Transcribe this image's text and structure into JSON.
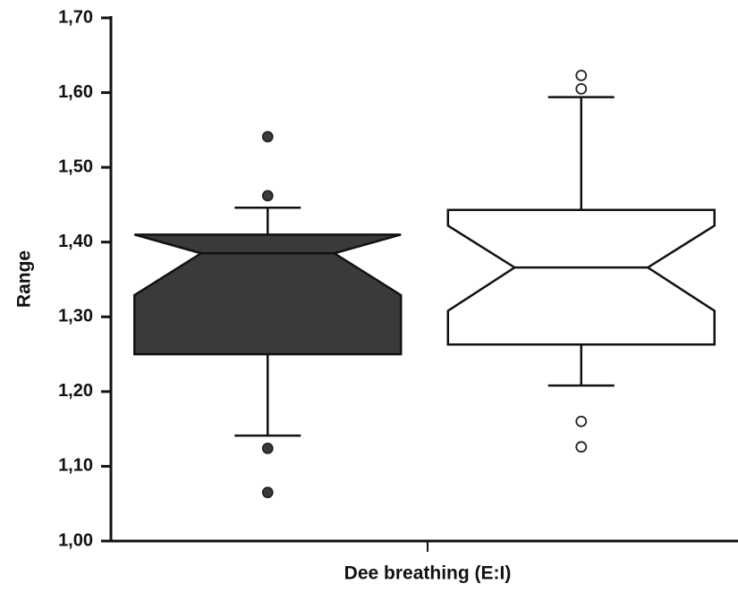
{
  "chart_data": {
    "type": "box",
    "x_label": "Dee breathing (E:I)",
    "y_label": "Range",
    "categories": [
      null,
      null
    ],
    "boxes": [
      {
        "color": "#3a3a3a",
        "q1": 1.25,
        "median": 1.385,
        "q3": 1.41,
        "notch_low": 1.329,
        "notch_high": 1.41,
        "whisker_low": 1.141,
        "whisker_high": 1.446,
        "outliers": [
          1.541,
          1.462,
          1.124,
          1.065
        ]
      },
      {
        "color": "#ffffff",
        "q1": 1.263,
        "median": 1.366,
        "q3": 1.443,
        "notch_low": 1.308,
        "notch_high": 1.422,
        "whisker_low": 1.208,
        "whisker_high": 1.594,
        "outliers": [
          1.623,
          1.605,
          1.16,
          1.126
        ]
      }
    ],
    "ylim": [
      1.0,
      1.7
    ],
    "yticks": [
      {
        "value": 1.0,
        "label": "1,00"
      },
      {
        "value": 1.1,
        "label": "1,10"
      },
      {
        "value": 1.2,
        "label": "1,20"
      },
      {
        "value": 1.3,
        "label": "1,30"
      },
      {
        "value": 1.4,
        "label": "1,40"
      },
      {
        "value": 1.5,
        "label": "1,50"
      },
      {
        "value": 1.6,
        "label": "1,60"
      },
      {
        "value": 1.7,
        "label": "1,70"
      }
    ]
  }
}
